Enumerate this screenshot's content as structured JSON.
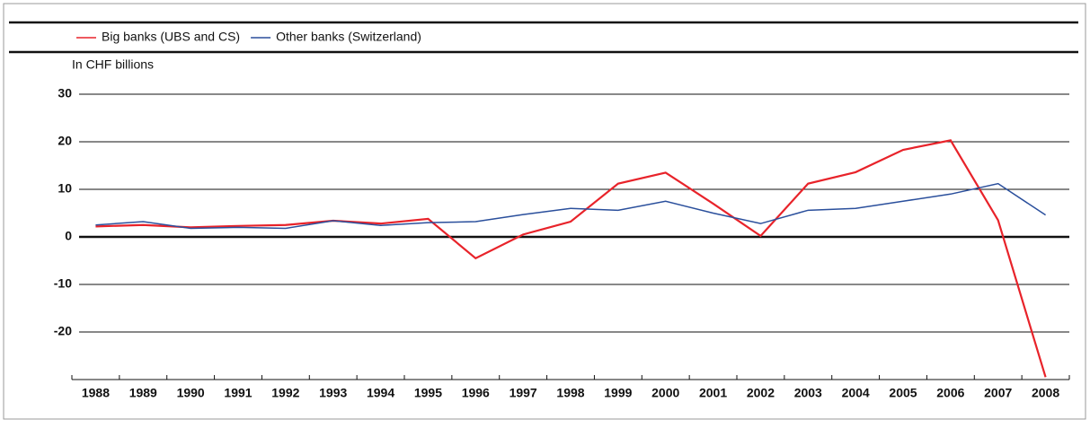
{
  "chart_data": {
    "type": "line",
    "y_label": "In CHF billions",
    "categories": [
      "1988",
      "1989",
      "1990",
      "1991",
      "1992",
      "1993",
      "1994",
      "1995",
      "1996",
      "1997",
      "1998",
      "1999",
      "2000",
      "2001",
      "2002",
      "2003",
      "2004",
      "2005",
      "2006",
      "2007",
      "2008"
    ],
    "series": [
      {
        "name": "Big banks (UBS and CS)",
        "color": "#e8232a",
        "values": [
          2.2,
          2.5,
          2.0,
          2.3,
          2.5,
          3.4,
          2.8,
          3.8,
          -4.5,
          0.5,
          3.2,
          11.2,
          13.5,
          7.0,
          0.2,
          11.2,
          13.6,
          18.3,
          20.3,
          3.5,
          -29.5
        ]
      },
      {
        "name": "Other banks (Switzerland)",
        "color": "#2a4f9c",
        "values": [
          2.5,
          3.2,
          1.8,
          2.0,
          1.8,
          3.4,
          2.4,
          3.0,
          3.2,
          4.7,
          6.0,
          5.6,
          7.5,
          5.0,
          2.8,
          5.6,
          6.0,
          7.5,
          9.0,
          11.2,
          4.6
        ]
      }
    ],
    "ylim": [
      -30,
      30
    ],
    "yticks": [
      30,
      20,
      10,
      0,
      -10,
      -20
    ],
    "grid": true
  }
}
